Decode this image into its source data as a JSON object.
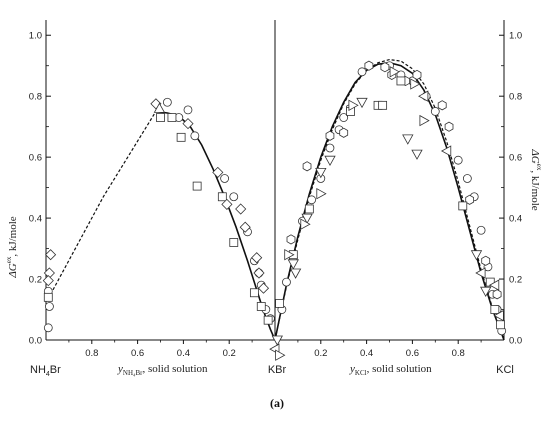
{
  "chart_data": {
    "type": "scatter",
    "panel_label": "(a)",
    "ylabel_main": "ΔG",
    "ylabel_sup": "ex",
    "ylabel_rest": ", kJ/mole",
    "ylim": [
      0,
      1.05
    ],
    "yticks": [
      "0.0",
      "0.2",
      "0.4",
      "0.6",
      "0.8",
      "1.0"
    ],
    "left_panel": {
      "xlabel_main": "y",
      "xlabel_sub": "NH₄Br",
      "xlabel_rest": ", solid solution",
      "x_reversed": true,
      "xlim": [
        1,
        0
      ],
      "xticks": [
        "0.8",
        "0.6",
        "0.4",
        "0.2"
      ],
      "left_component_main": "NH",
      "left_component_sub": "4",
      "left_component_rest": "Br",
      "right_component": "KBr",
      "curve_solid": [
        [
          0.52,
          0.75
        ],
        [
          0.47,
          0.745
        ],
        [
          0.42,
          0.735
        ],
        [
          0.37,
          0.7
        ],
        [
          0.32,
          0.64
        ],
        [
          0.27,
          0.56
        ],
        [
          0.22,
          0.47
        ],
        [
          0.17,
          0.37
        ],
        [
          0.12,
          0.26
        ],
        [
          0.08,
          0.165
        ],
        [
          0.05,
          0.095
        ],
        [
          0.02,
          0.035
        ],
        [
          0.0,
          0.0
        ]
      ],
      "curve_dashed": [
        [
          0.98,
          0.15
        ],
        [
          0.75,
          0.47
        ],
        [
          0.52,
          0.75
        ]
      ],
      "series": [
        {
          "marker": "circle",
          "points": [
            [
              0.99,
              0.04
            ],
            [
              0.985,
              0.11
            ],
            [
              0.99,
              0.16
            ],
            [
              0.47,
              0.78
            ],
            [
              0.42,
              0.73
            ],
            [
              0.38,
              0.755
            ],
            [
              0.35,
              0.67
            ],
            [
              0.22,
              0.53
            ],
            [
              0.18,
              0.47
            ],
            [
              0.12,
              0.355
            ],
            [
              0.09,
              0.26
            ],
            [
              0.07,
              0.22
            ],
            [
              0.06,
              0.18
            ],
            [
              0.04,
              0.1
            ],
            [
              0.02,
              0.07
            ]
          ]
        },
        {
          "marker": "square",
          "points": [
            [
              0.99,
              0.14
            ],
            [
              0.5,
              0.73
            ],
            [
              0.45,
              0.73
            ],
            [
              0.41,
              0.665
            ],
            [
              0.34,
              0.505
            ],
            [
              0.23,
              0.47
            ],
            [
              0.18,
              0.32
            ],
            [
              0.09,
              0.155
            ],
            [
              0.06,
              0.11
            ],
            [
              0.03,
              0.065
            ]
          ]
        },
        {
          "marker": "diamond",
          "points": [
            [
              0.98,
              0.28
            ],
            [
              0.985,
              0.22
            ],
            [
              0.99,
              0.195
            ],
            [
              0.52,
              0.775
            ],
            [
              0.38,
              0.71
            ],
            [
              0.25,
              0.55
            ],
            [
              0.21,
              0.445
            ],
            [
              0.15,
              0.43
            ],
            [
              0.13,
              0.37
            ],
            [
              0.08,
              0.27
            ],
            [
              0.07,
              0.22
            ],
            [
              0.05,
              0.17
            ]
          ]
        },
        {
          "marker": "triangle-up",
          "points": [
            [
              0.505,
              0.76
            ]
          ]
        },
        {
          "marker": "triangle-left",
          "points": [
            [
              0.0,
              -0.03
            ]
          ]
        }
      ]
    },
    "right_panel": {
      "xlabel_main": "y",
      "xlabel_sub": "KCl",
      "xlabel_rest": ", solid solution",
      "x_reversed": false,
      "xlim": [
        0,
        1
      ],
      "xticks": [
        "0.2",
        "0.4",
        "0.6",
        "0.8"
      ],
      "right_component": "KCl",
      "curve_solid": [
        [
          0.0,
          0.0
        ],
        [
          0.05,
          0.18
        ],
        [
          0.1,
          0.34
        ],
        [
          0.15,
          0.48
        ],
        [
          0.2,
          0.6
        ],
        [
          0.25,
          0.7
        ],
        [
          0.3,
          0.78
        ],
        [
          0.35,
          0.845
        ],
        [
          0.4,
          0.885
        ],
        [
          0.45,
          0.905
        ],
        [
          0.5,
          0.91
        ],
        [
          0.55,
          0.9
        ],
        [
          0.6,
          0.875
        ],
        [
          0.65,
          0.82
        ],
        [
          0.7,
          0.74
        ],
        [
          0.75,
          0.63
        ],
        [
          0.8,
          0.5
        ],
        [
          0.85,
          0.36
        ],
        [
          0.9,
          0.22
        ],
        [
          0.95,
          0.1
        ],
        [
          1.0,
          0.0
        ]
      ],
      "curve_dashed": [
        [
          0.0,
          0.0
        ],
        [
          0.05,
          0.175
        ],
        [
          0.1,
          0.33
        ],
        [
          0.15,
          0.47
        ],
        [
          0.2,
          0.59
        ],
        [
          0.25,
          0.69
        ],
        [
          0.3,
          0.775
        ],
        [
          0.35,
          0.84
        ],
        [
          0.4,
          0.885
        ],
        [
          0.45,
          0.91
        ],
        [
          0.5,
          0.92
        ],
        [
          0.55,
          0.915
        ],
        [
          0.6,
          0.89
        ],
        [
          0.65,
          0.84
        ],
        [
          0.7,
          0.76
        ],
        [
          0.75,
          0.65
        ],
        [
          0.8,
          0.52
        ],
        [
          0.85,
          0.375
        ],
        [
          0.9,
          0.23
        ],
        [
          0.95,
          0.105
        ],
        [
          1.0,
          0.0
        ]
      ],
      "series": [
        {
          "marker": "circle",
          "points": [
            [
              0.03,
              0.1
            ],
            [
              0.05,
              0.19
            ],
            [
              0.08,
              0.27
            ],
            [
              0.12,
              0.39
            ],
            [
              0.16,
              0.46
            ],
            [
              0.2,
              0.53
            ],
            [
              0.24,
              0.63
            ],
            [
              0.28,
              0.69
            ],
            [
              0.3,
              0.73
            ],
            [
              0.5,
              0.9
            ],
            [
              0.55,
              0.87
            ],
            [
              0.6,
              0.85
            ],
            [
              0.66,
              0.8
            ],
            [
              0.7,
              0.75
            ],
            [
              0.8,
              0.59
            ],
            [
              0.84,
              0.53
            ],
            [
              0.87,
              0.47
            ],
            [
              0.9,
              0.36
            ],
            [
              0.93,
              0.24
            ],
            [
              0.95,
              0.15
            ],
            [
              0.97,
              0.1
            ],
            [
              0.99,
              0.03
            ],
            [
              0.38,
              0.88
            ]
          ]
        },
        {
          "marker": "hexagon",
          "points": [
            [
              0.07,
              0.33
            ],
            [
              0.14,
              0.57
            ],
            [
              0.24,
              0.67
            ],
            [
              0.3,
              0.68
            ],
            [
              0.33,
              0.76
            ],
            [
              0.41,
              0.9
            ],
            [
              0.48,
              0.895
            ],
            [
              0.51,
              0.87
            ],
            [
              0.57,
              0.85
            ],
            [
              0.62,
              0.87
            ],
            [
              0.73,
              0.77
            ],
            [
              0.76,
              0.7
            ],
            [
              0.85,
              0.46
            ],
            [
              0.92,
              0.26
            ],
            [
              0.97,
              0.15
            ]
          ]
        },
        {
          "marker": "square",
          "points": [
            [
              0.02,
              0.12
            ],
            [
              0.08,
              0.28
            ],
            [
              0.15,
              0.43
            ],
            [
              0.33,
              0.75
            ],
            [
              0.45,
              0.77
            ],
            [
              0.47,
              0.77
            ],
            [
              0.55,
              0.85
            ],
            [
              0.82,
              0.44
            ],
            [
              0.94,
              0.19
            ],
            [
              0.96,
              0.1
            ],
            [
              0.985,
              0.05
            ]
          ]
        },
        {
          "marker": "triangle-down",
          "points": [
            [
              0.01,
              0.0
            ],
            [
              0.08,
              0.25
            ],
            [
              0.09,
              0.22
            ],
            [
              0.14,
              0.4
            ],
            [
              0.2,
              0.55
            ],
            [
              0.24,
              0.59
            ],
            [
              0.38,
              0.78
            ],
            [
              0.58,
              0.66
            ],
            [
              0.62,
              0.61
            ],
            [
              0.88,
              0.28
            ],
            [
              0.92,
              0.16
            ]
          ]
        },
        {
          "marker": "triangle-right",
          "points": [
            [
              0.02,
              -0.05
            ],
            [
              0.06,
              0.28
            ],
            [
              0.13,
              0.38
            ],
            [
              0.2,
              0.48
            ],
            [
              0.34,
              0.77
            ],
            [
              0.52,
              0.88
            ],
            [
              0.61,
              0.84
            ],
            [
              0.65,
              0.72
            ]
          ]
        },
        {
          "marker": "triangle-left",
          "points": [
            [
              0.65,
              0.8
            ],
            [
              0.75,
              0.62
            ],
            [
              0.9,
              0.22
            ],
            [
              0.96,
              0.18
            ],
            [
              0.98,
              0.08
            ]
          ]
        }
      ]
    }
  }
}
